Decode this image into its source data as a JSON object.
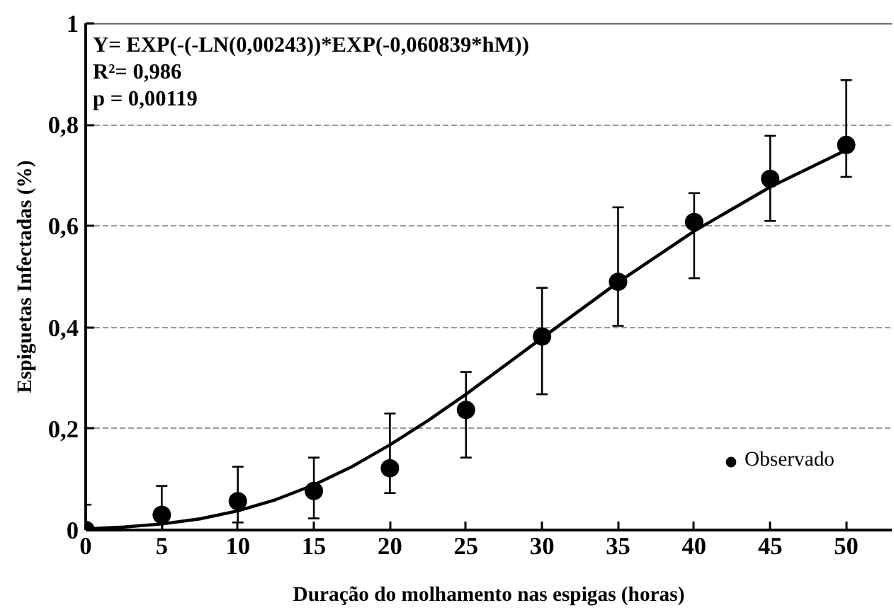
{
  "chart_data": {
    "type": "scatter",
    "xlabel": "Duração do molhamento nas espigas (horas)",
    "ylabel": "Espiguetas Infectadas (%)",
    "x": [
      0,
      5,
      10,
      15,
      20,
      25,
      30,
      35,
      40,
      45,
      50
    ],
    "series": [
      {
        "name": "Observado",
        "marker": "circle",
        "color": "#000000",
        "values": [
          0,
          0.03,
          0.057,
          0.077,
          0.122,
          0.237,
          0.382,
          0.49,
          0.608,
          0.693,
          0.76
        ],
        "errors": [
          [
            0,
            0.05
          ],
          [
            0,
            0.087
          ],
          [
            0.015,
            0.125
          ],
          [
            0.023,
            0.143
          ],
          [
            0.073,
            0.23
          ],
          [
            0.143,
            0.312
          ],
          [
            0.268,
            0.478
          ],
          [
            0.403,
            0.637
          ],
          [
            0.497,
            0.665
          ],
          [
            0.61,
            0.778
          ],
          [
            0.697,
            0.888
          ]
        ]
      },
      {
        "type": "line",
        "marker": "none",
        "color": "#000000",
        "x": [
          0,
          2.5,
          5,
          7.5,
          10,
          12.5,
          15,
          17.5,
          20,
          22.5,
          25,
          30,
          35,
          40,
          45,
          50
        ],
        "values": [
          0.002,
          0.006,
          0.012,
          0.022,
          0.038,
          0.06,
          0.089,
          0.125,
          0.168,
          0.216,
          0.268,
          0.379,
          0.489,
          0.59,
          0.677,
          0.75
        ]
      }
    ],
    "xlim": [
      0,
      53
    ],
    "ylim": [
      0,
      1
    ],
    "xticks": [
      0,
      5,
      10,
      15,
      20,
      25,
      30,
      35,
      40,
      45,
      50
    ],
    "yticks": [
      0,
      {
        "value": 0.2,
        "label": "0,2"
      },
      {
        "value": 0.4,
        "label": "0,4"
      },
      {
        "value": 0.6,
        "label": "0,6"
      },
      {
        "value": 0.8,
        "label": "0,8"
      },
      1
    ],
    "grid": "y",
    "legend": "bottom right",
    "line_style": "solid",
    "annotations": [
      "Y= EXP(-(-LN(0,00243))*EXP(-0,060839*hM))",
      "R²= 0,986",
      "p = 0,00119"
    ]
  }
}
